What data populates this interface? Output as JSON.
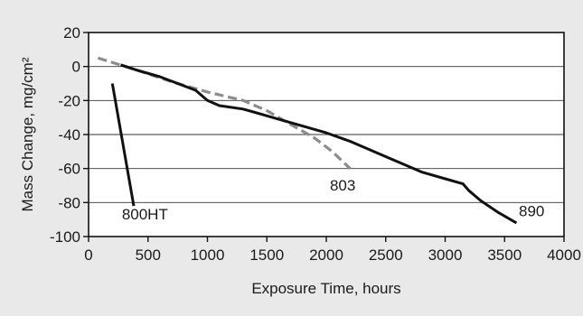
{
  "chart_data": {
    "type": "line",
    "xlabel": "Exposure Time, hours",
    "ylabel": "Mass Change, mg/cm²",
    "xlim": [
      0,
      4000
    ],
    "ylim": [
      -100,
      20
    ],
    "xticks": [
      0,
      500,
      1000,
      1500,
      2000,
      2500,
      3000,
      3500,
      4000
    ],
    "yticks": [
      20,
      0,
      -20,
      -40,
      -60,
      -80,
      -100
    ],
    "grid": "horizontal",
    "colors": {
      "plot_bg": "#ffffff",
      "page_bg": "#e9e9e9",
      "solid": "#111111",
      "dashed": "#8c8c8c"
    },
    "series": [
      {
        "name": "800HT",
        "style": "solid",
        "points": [
          [
            200,
            -10
          ],
          [
            380,
            -82
          ]
        ]
      },
      {
        "name": "803",
        "style": "dashed",
        "points": [
          [
            80,
            5
          ],
          [
            400,
            -2
          ],
          [
            700,
            -9
          ],
          [
            1000,
            -15
          ],
          [
            1300,
            -20
          ],
          [
            1500,
            -26
          ],
          [
            1700,
            -34
          ],
          [
            1900,
            -42
          ],
          [
            2050,
            -50
          ],
          [
            2200,
            -60
          ]
        ]
      },
      {
        "name": "890",
        "style": "solid",
        "points": [
          [
            270,
            1
          ],
          [
            400,
            -2
          ],
          [
            600,
            -6
          ],
          [
            900,
            -14
          ],
          [
            1000,
            -20
          ],
          [
            1100,
            -23
          ],
          [
            1300,
            -25
          ],
          [
            1400,
            -27
          ],
          [
            1600,
            -31
          ],
          [
            1800,
            -35
          ],
          [
            2000,
            -39
          ],
          [
            2200,
            -44
          ],
          [
            2500,
            -53
          ],
          [
            2800,
            -62
          ],
          [
            3000,
            -66
          ],
          [
            3150,
            -69
          ],
          [
            3200,
            -73
          ],
          [
            3300,
            -79
          ],
          [
            3450,
            -86
          ],
          [
            3600,
            -92
          ]
        ]
      }
    ],
    "annotations": [
      {
        "text": "800HT",
        "x": 280,
        "y": -90
      },
      {
        "text": "803",
        "x": 2030,
        "y": -73
      },
      {
        "text": "890",
        "x": 3620,
        "y": -88
      }
    ]
  }
}
